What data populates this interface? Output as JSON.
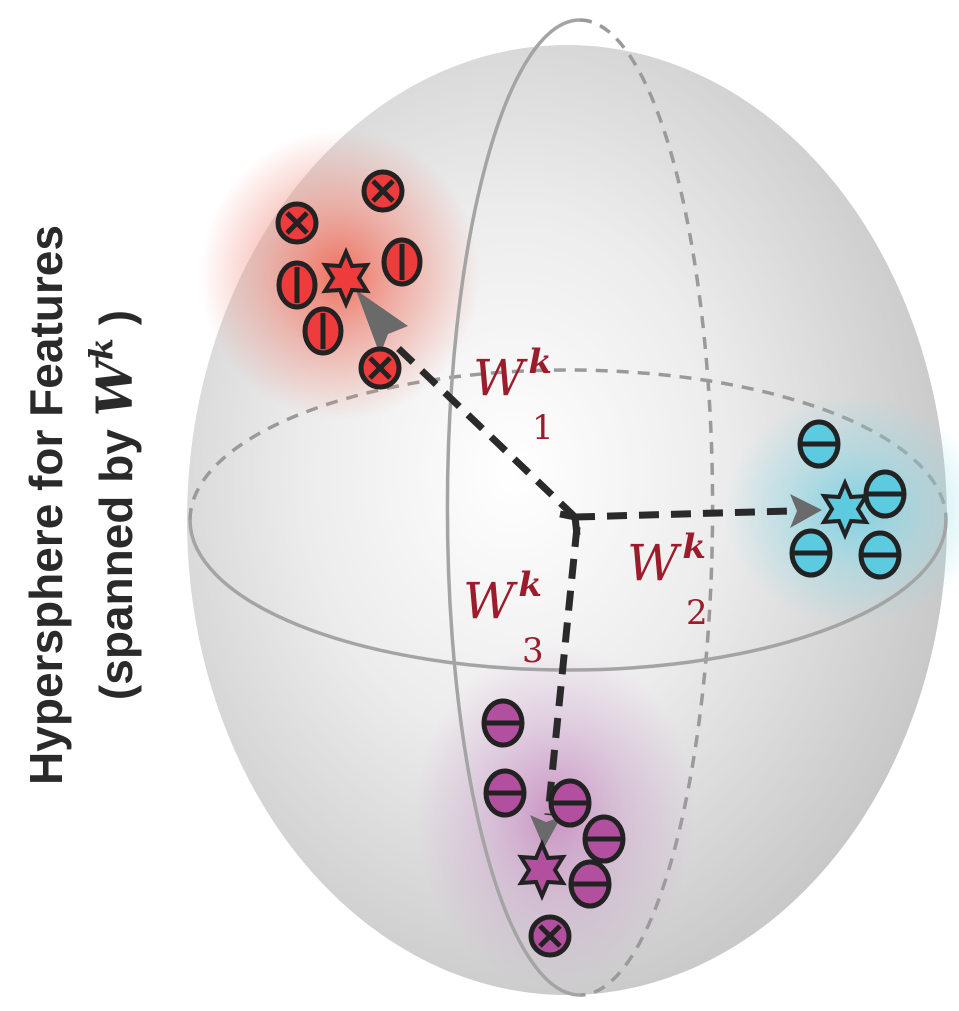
{
  "axis_label": {
    "line1": "Hypersphere for Features",
    "line2_prefix": "(spanned by ",
    "line2_var": "W",
    "line2_sup": "k",
    "line2_suffix": " )"
  },
  "weights": [
    {
      "var": "W",
      "sup": "k",
      "sub": "1"
    },
    {
      "var": "W",
      "sup": "k",
      "sub": "2"
    },
    {
      "var": "W",
      "sup": "k",
      "sub": "3"
    }
  ],
  "clusters": {
    "red": {
      "fill": "#ee3b3b",
      "glow": "#f08070"
    },
    "cyan": {
      "fill": "#5ccbe0",
      "glow": "#8ad8e6"
    },
    "purple": {
      "fill": "#b2509f",
      "glow": "#c994c8"
    }
  },
  "colors": {
    "sphere": "#d8d8d8",
    "outline": "#222222",
    "label": "#9b1c2b",
    "arrow": "#555555"
  }
}
